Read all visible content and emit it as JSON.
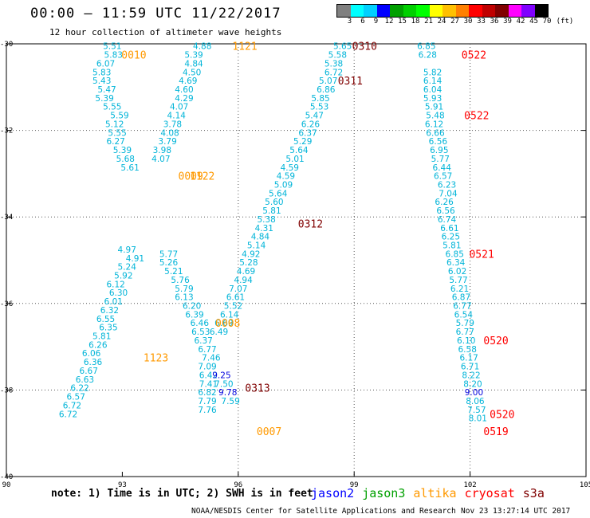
{
  "header": {
    "title": "00:00 – 11:59 UTC 11/22/2017",
    "subtitle": "12 hour collection of altimeter wave heights"
  },
  "legend": {
    "colors": [
      "#808080",
      "#00ffff",
      "#00d0ff",
      "#0000ff",
      "#00a000",
      "#00d000",
      "#00ff00",
      "#ffff00",
      "#ffc000",
      "#ff8000",
      "#ff0000",
      "#c00000",
      "#800000",
      "#ff00ff",
      "#8000ff",
      "#000000"
    ],
    "labels": [
      "3",
      "6",
      "9",
      "12",
      "15",
      "18",
      "21",
      "24",
      "27",
      "30",
      "33",
      "36",
      "39",
      "42",
      "45",
      "70",
      "(ft)"
    ]
  },
  "chart_data": {
    "type": "scatter",
    "xlim": [
      90,
      105
    ],
    "ylim": [
      -40,
      -30
    ],
    "xticks": [
      "90",
      "93",
      "96",
      "99",
      "102",
      "105"
    ],
    "yticks": [
      "-30",
      "-32",
      "-34",
      "-36",
      "-38",
      "-40"
    ],
    "grid_x": [
      96,
      99,
      102
    ],
    "grid_y": [
      -32,
      -34,
      -36,
      -38
    ],
    "grid": "dotted",
    "points": [
      {
        "v": "5.51",
        "x": 92.74,
        "y": -30.05
      },
      {
        "v": "5.83",
        "x": 92.77,
        "y": -30.25
      },
      {
        "v": "6.07",
        "x": 92.57,
        "y": -30.45
      },
      {
        "v": "5.83",
        "x": 92.47,
        "y": -30.65
      },
      {
        "v": "5.43",
        "x": 92.47,
        "y": -30.85
      },
      {
        "v": "5.47",
        "x": 92.6,
        "y": -31.05
      },
      {
        "v": "5.39",
        "x": 92.54,
        "y": -31.25
      },
      {
        "v": "5.55",
        "x": 92.74,
        "y": -31.45
      },
      {
        "v": "5.59",
        "x": 92.93,
        "y": -31.65
      },
      {
        "v": "5.12",
        "x": 92.8,
        "y": -31.85
      },
      {
        "v": "5.55",
        "x": 92.87,
        "y": -32.05
      },
      {
        "v": "6.27",
        "x": 92.83,
        "y": -32.25
      },
      {
        "v": "5.39",
        "x": 93.0,
        "y": -32.45
      },
      {
        "v": "5.68",
        "x": 93.08,
        "y": -32.65
      },
      {
        "v": "5.61",
        "x": 93.2,
        "y": -32.85
      },
      {
        "v": "4.88",
        "x": 95.07,
        "y": -30.05
      },
      {
        "v": "5.39",
        "x": 94.85,
        "y": -30.25
      },
      {
        "v": "4.84",
        "x": 94.85,
        "y": -30.45
      },
      {
        "v": "4.50",
        "x": 94.8,
        "y": -30.65
      },
      {
        "v": "4.69",
        "x": 94.7,
        "y": -30.85
      },
      {
        "v": "4.60",
        "x": 94.6,
        "y": -31.05
      },
      {
        "v": "4.29",
        "x": 94.6,
        "y": -31.25
      },
      {
        "v": "4.07",
        "x": 94.47,
        "y": -31.45
      },
      {
        "v": "4.14",
        "x": 94.4,
        "y": -31.65
      },
      {
        "v": "3.78",
        "x": 94.3,
        "y": -31.85
      },
      {
        "v": "4.08",
        "x": 94.23,
        "y": -32.05
      },
      {
        "v": "3.79",
        "x": 94.17,
        "y": -32.25
      },
      {
        "v": "3.98",
        "x": 94.03,
        "y": -32.45
      },
      {
        "v": "4.07",
        "x": 94.0,
        "y": -32.65
      },
      {
        "v": "4.97",
        "x": 93.12,
        "y": -34.75
      },
      {
        "v": "4.91",
        "x": 93.33,
        "y": -34.95
      },
      {
        "v": "5.24",
        "x": 93.12,
        "y": -35.15
      },
      {
        "v": "5.92",
        "x": 93.03,
        "y": -35.35
      },
      {
        "v": "6.12",
        "x": 92.83,
        "y": -35.55
      },
      {
        "v": "6.30",
        "x": 92.9,
        "y": -35.75
      },
      {
        "v": "6.01",
        "x": 92.77,
        "y": -35.95
      },
      {
        "v": "6.32",
        "x": 92.67,
        "y": -36.15
      },
      {
        "v": "6.55",
        "x": 92.57,
        "y": -36.35
      },
      {
        "v": "6.35",
        "x": 92.64,
        "y": -36.55
      },
      {
        "v": "5.81",
        "x": 92.47,
        "y": -36.75
      },
      {
        "v": "6.26",
        "x": 92.37,
        "y": -36.95
      },
      {
        "v": "6.06",
        "x": 92.2,
        "y": -37.15
      },
      {
        "v": "6.36",
        "x": 92.24,
        "y": -37.35
      },
      {
        "v": "6.67",
        "x": 92.13,
        "y": -37.55
      },
      {
        "v": "6.63",
        "x": 92.03,
        "y": -37.75
      },
      {
        "v": "6.22",
        "x": 91.9,
        "y": -37.95
      },
      {
        "v": "6.57",
        "x": 91.8,
        "y": -38.15
      },
      {
        "v": "6.72",
        "x": 91.7,
        "y": -38.35
      },
      {
        "v": "6.72",
        "x": 91.6,
        "y": -38.55
      },
      {
        "v": "5.77",
        "x": 94.2,
        "y": -34.85
      },
      {
        "v": "5.26",
        "x": 94.2,
        "y": -35.05
      },
      {
        "v": "5.21",
        "x": 94.33,
        "y": -35.25
      },
      {
        "v": "5.76",
        "x": 94.5,
        "y": -35.45
      },
      {
        "v": "5.79",
        "x": 94.6,
        "y": -35.65
      },
      {
        "v": "6.13",
        "x": 94.6,
        "y": -35.85
      },
      {
        "v": "6.20",
        "x": 94.8,
        "y": -36.05
      },
      {
        "v": "6.39",
        "x": 94.87,
        "y": -36.25
      },
      {
        "v": "6.46",
        "x": 95.0,
        "y": -36.45
      },
      {
        "v": "6.53",
        "x": 95.03,
        "y": -36.65
      },
      {
        "v": "6.37",
        "x": 95.1,
        "y": -36.85
      },
      {
        "v": "6.77",
        "x": 95.2,
        "y": -37.05
      },
      {
        "v": "7.46",
        "x": 95.3,
        "y": -37.25
      },
      {
        "v": "7.09",
        "x": 95.2,
        "y": -37.45
      },
      {
        "v": "6.42",
        "x": 95.23,
        "y": -37.65
      },
      {
        "v": "7.41",
        "x": 95.23,
        "y": -37.85
      },
      {
        "v": "6.82",
        "x": 95.2,
        "y": -38.05
      },
      {
        "v": "7.79",
        "x": 95.2,
        "y": -38.25
      },
      {
        "v": "7.76",
        "x": 95.2,
        "y": -38.45
      },
      {
        "v": "5.65",
        "x": 98.7,
        "y": -30.05
      },
      {
        "v": "5.58",
        "x": 98.57,
        "y": -30.25
      },
      {
        "v": "5.38",
        "x": 98.47,
        "y": -30.45
      },
      {
        "v": "6.72",
        "x": 98.47,
        "y": -30.65
      },
      {
        "v": "5.07",
        "x": 98.33,
        "y": -30.85
      },
      {
        "v": "6.86",
        "x": 98.27,
        "y": -31.05
      },
      {
        "v": "5.85",
        "x": 98.13,
        "y": -31.25
      },
      {
        "v": "5.53",
        "x": 98.1,
        "y": -31.45
      },
      {
        "v": "5.47",
        "x": 97.97,
        "y": -31.65
      },
      {
        "v": "6.26",
        "x": 97.87,
        "y": -31.85
      },
      {
        "v": "6.37",
        "x": 97.8,
        "y": -32.05
      },
      {
        "v": "5.29",
        "x": 97.67,
        "y": -32.25
      },
      {
        "v": "5.64",
        "x": 97.57,
        "y": -32.45
      },
      {
        "v": "5.01",
        "x": 97.47,
        "y": -32.65
      },
      {
        "v": "4.59",
        "x": 97.33,
        "y": -32.85
      },
      {
        "v": "4.59",
        "x": 97.23,
        "y": -33.05
      },
      {
        "v": "5.09",
        "x": 97.17,
        "y": -33.25
      },
      {
        "v": "5.64",
        "x": 97.03,
        "y": -33.45
      },
      {
        "v": "5.60",
        "x": 96.93,
        "y": -33.65
      },
      {
        "v": "5.81",
        "x": 96.87,
        "y": -33.85
      },
      {
        "v": "5.38",
        "x": 96.73,
        "y": -34.05
      },
      {
        "v": "4.31",
        "x": 96.67,
        "y": -34.25
      },
      {
        "v": "4.84",
        "x": 96.57,
        "y": -34.45
      },
      {
        "v": "5.14",
        "x": 96.47,
        "y": -34.65
      },
      {
        "v": "4.92",
        "x": 96.33,
        "y": -34.85
      },
      {
        "v": "5.28",
        "x": 96.27,
        "y": -35.05
      },
      {
        "v": "4.69",
        "x": 96.2,
        "y": -35.25
      },
      {
        "v": "4.94",
        "x": 96.13,
        "y": -35.45
      },
      {
        "v": "7.07",
        "x": 96.0,
        "y": -35.65
      },
      {
        "v": "6.61",
        "x": 95.93,
        "y": -35.85
      },
      {
        "v": "5.52",
        "x": 95.87,
        "y": -36.05
      },
      {
        "v": "6.14",
        "x": 95.77,
        "y": -36.25
      },
      {
        "v": "6.69",
        "x": 95.63,
        "y": -36.45
      },
      {
        "v": "6.49",
        "x": 95.5,
        "y": -36.65
      },
      {
        "v": "9.25",
        "x": 95.57,
        "y": -37.65
      },
      {
        "v": "7.50",
        "x": 95.63,
        "y": -37.85
      },
      {
        "v": "9.78",
        "x": 95.73,
        "y": -38.05
      },
      {
        "v": "7.59",
        "x": 95.8,
        "y": -38.25
      },
      {
        "v": "6.85",
        "x": 100.87,
        "y": -30.05
      },
      {
        "v": "6.28",
        "x": 100.9,
        "y": -30.25
      },
      {
        "v": "5.82",
        "x": 101.03,
        "y": -30.65
      },
      {
        "v": "6.14",
        "x": 101.03,
        "y": -30.85
      },
      {
        "v": "6.04",
        "x": 101.03,
        "y": -31.05
      },
      {
        "v": "5.93",
        "x": 101.03,
        "y": -31.25
      },
      {
        "v": "5.91",
        "x": 101.07,
        "y": -31.45
      },
      {
        "v": "5.48",
        "x": 101.1,
        "y": -31.65
      },
      {
        "v": "6.12",
        "x": 101.07,
        "y": -31.85
      },
      {
        "v": "6.66",
        "x": 101.1,
        "y": -32.05
      },
      {
        "v": "6.56",
        "x": 101.17,
        "y": -32.25
      },
      {
        "v": "6.95",
        "x": 101.2,
        "y": -32.45
      },
      {
        "v": "5.77",
        "x": 101.23,
        "y": -32.65
      },
      {
        "v": "6.44",
        "x": 101.27,
        "y": -32.85
      },
      {
        "v": "6.57",
        "x": 101.3,
        "y": -33.05
      },
      {
        "v": "6.23",
        "x": 101.4,
        "y": -33.25
      },
      {
        "v": "7.04",
        "x": 101.43,
        "y": -33.45
      },
      {
        "v": "6.26",
        "x": 101.33,
        "y": -33.65
      },
      {
        "v": "6.56",
        "x": 101.37,
        "y": -33.85
      },
      {
        "v": "6.74",
        "x": 101.4,
        "y": -34.05
      },
      {
        "v": "6.61",
        "x": 101.47,
        "y": -34.25
      },
      {
        "v": "6.25",
        "x": 101.5,
        "y": -34.45
      },
      {
        "v": "5.81",
        "x": 101.53,
        "y": -34.65
      },
      {
        "v": "6.85",
        "x": 101.6,
        "y": -34.85
      },
      {
        "v": "6.34",
        "x": 101.63,
        "y": -35.05
      },
      {
        "v": "6.02",
        "x": 101.67,
        "y": -35.25
      },
      {
        "v": "5.77",
        "x": 101.7,
        "y": -35.45
      },
      {
        "v": "6.21",
        "x": 101.73,
        "y": -35.65
      },
      {
        "v": "6.87",
        "x": 101.77,
        "y": -35.85
      },
      {
        "v": "6.77",
        "x": 101.8,
        "y": -36.05
      },
      {
        "v": "6.54",
        "x": 101.83,
        "y": -36.25
      },
      {
        "v": "5.79",
        "x": 101.87,
        "y": -36.45
      },
      {
        "v": "6.77",
        "x": 101.87,
        "y": -36.65
      },
      {
        "v": "6.10",
        "x": 101.9,
        "y": -36.85
      },
      {
        "v": "6.58",
        "x": 101.93,
        "y": -37.05
      },
      {
        "v": "6.17",
        "x": 101.97,
        "y": -37.25
      },
      {
        "v": "6.71",
        "x": 102.0,
        "y": -37.45
      },
      {
        "v": "8.22",
        "x": 102.03,
        "y": -37.65
      },
      {
        "v": "8.20",
        "x": 102.07,
        "y": -37.85
      },
      {
        "v": "9.00",
        "x": 102.1,
        "y": -38.05
      },
      {
        "v": "8.06",
        "x": 102.13,
        "y": -38.25
      },
      {
        "v": "7.57",
        "x": 102.17,
        "y": -38.45
      },
      {
        "v": "8.01",
        "x": 102.2,
        "y": -38.65
      }
    ],
    "time_tags": [
      {
        "t": "0010",
        "x": 93.3,
        "y": -30.25,
        "mission": "altika"
      },
      {
        "t": "1121",
        "x": 96.17,
        "y": -30.05,
        "mission": "altika"
      },
      {
        "t": "0310",
        "x": 99.27,
        "y": -30.05,
        "mission": "s3a"
      },
      {
        "t": "0311",
        "x": 98.9,
        "y": -30.85,
        "mission": "s3a"
      },
      {
        "t": "0522",
        "x": 102.1,
        "y": -30.25,
        "mission": "cryosat"
      },
      {
        "t": "0522",
        "x": 102.17,
        "y": -31.65,
        "mission": "cryosat"
      },
      {
        "t": "0009",
        "x": 94.77,
        "y": -33.05,
        "mission": "altika"
      },
      {
        "t": "1122",
        "x": 95.07,
        "y": -33.05,
        "mission": "altika"
      },
      {
        "t": "0312",
        "x": 97.87,
        "y": -34.15,
        "mission": "s3a"
      },
      {
        "t": "0521",
        "x": 102.3,
        "y": -34.85,
        "mission": "cryosat"
      },
      {
        "t": "1123",
        "x": 93.87,
        "y": -37.25,
        "mission": "altika"
      },
      {
        "t": "0008",
        "x": 95.73,
        "y": -36.45,
        "mission": "altika"
      },
      {
        "t": "0313",
        "x": 96.5,
        "y": -37.95,
        "mission": "s3a"
      },
      {
        "t": "0520",
        "x": 102.67,
        "y": -36.85,
        "mission": "cryosat"
      },
      {
        "t": "0520",
        "x": 102.83,
        "y": -38.55,
        "mission": "cryosat"
      },
      {
        "t": "0007",
        "x": 96.8,
        "y": -38.95,
        "mission": "altika"
      },
      {
        "t": "0519",
        "x": 102.67,
        "y": -38.95,
        "mission": "cryosat"
      }
    ]
  },
  "footer": {
    "note": "note: 1) Time is in UTC; 2) SWH is in feet",
    "missions": [
      {
        "name": "jason2",
        "color": "#0000ff"
      },
      {
        "name": "jason3",
        "color": "#00a000"
      },
      {
        "name": "altika",
        "color": "#ff9900"
      },
      {
        "name": "cryosat",
        "color": "#ff0000"
      },
      {
        "name": "s3a",
        "color": "#800000"
      }
    ],
    "credit": "NOAA/NESDIS Center for Satellite Applications and Research",
    "timestamp": "Nov 23 13:27:14 UTC 2017"
  }
}
